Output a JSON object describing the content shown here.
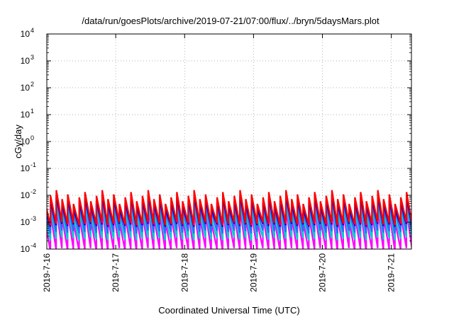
{
  "chart_data": {
    "type": "line",
    "title": "/data/run/goesPlots/archive/2019-07-21/07:00/flux/../bryn/5daysMars.plot",
    "xlabel": "Coordinated Universal Time (UTC)",
    "ylabel": "cGy/day",
    "y_scale": "log",
    "ylim": [
      0.0001,
      10000
    ],
    "y_tick_labels": [
      {
        "base": "10",
        "exp": "4"
      },
      {
        "base": "10",
        "exp": "3"
      },
      {
        "base": "10",
        "exp": "2"
      },
      {
        "base": "10",
        "exp": "1"
      },
      {
        "base": "10",
        "exp": "0"
      },
      {
        "base": "10",
        "exp": "-1"
      },
      {
        "base": "10",
        "exp": "-2"
      },
      {
        "base": "10",
        "exp": "-3"
      },
      {
        "base": "10",
        "exp": "-4"
      }
    ],
    "x_ticks": [
      "2019-7-16",
      "2019-7-17",
      "2019-7-18",
      "2019-7-19",
      "2019-7-20",
      "2019-7-21"
    ],
    "xlim": [
      "2019-07-16 00:00",
      "2019-07-21 07:00"
    ],
    "grid": true,
    "series_colors": [
      "#ff00ff",
      "#00cccc",
      "#3366ff",
      "#0000cc",
      "#ff0000"
    ],
    "sawtooth": {
      "period_hours": 2,
      "peak_values": [
        0.004,
        0.005,
        0.006,
        0.007,
        0.008,
        0.009,
        0.011,
        0.013
      ],
      "series_decay": [
        {
          "name": "",
          "color": "#ff0000",
          "peak_factor": 1.2,
          "min_value": 0.0009
        },
        {
          "name": "",
          "color": "#0000cc",
          "peak_factor": 0.75,
          "min_value": 0.0008
        },
        {
          "name": "",
          "color": "#3366ff",
          "peak_factor": 0.6,
          "min_value": 0.00045
        },
        {
          "name": "",
          "color": "#00cccc",
          "peak_factor": 0.35,
          "min_value": 0.00025
        },
        {
          "name": "",
          "color": "#ff00ff",
          "peak_factor": 0.25,
          "min_value": 0.0001
        }
      ]
    }
  }
}
